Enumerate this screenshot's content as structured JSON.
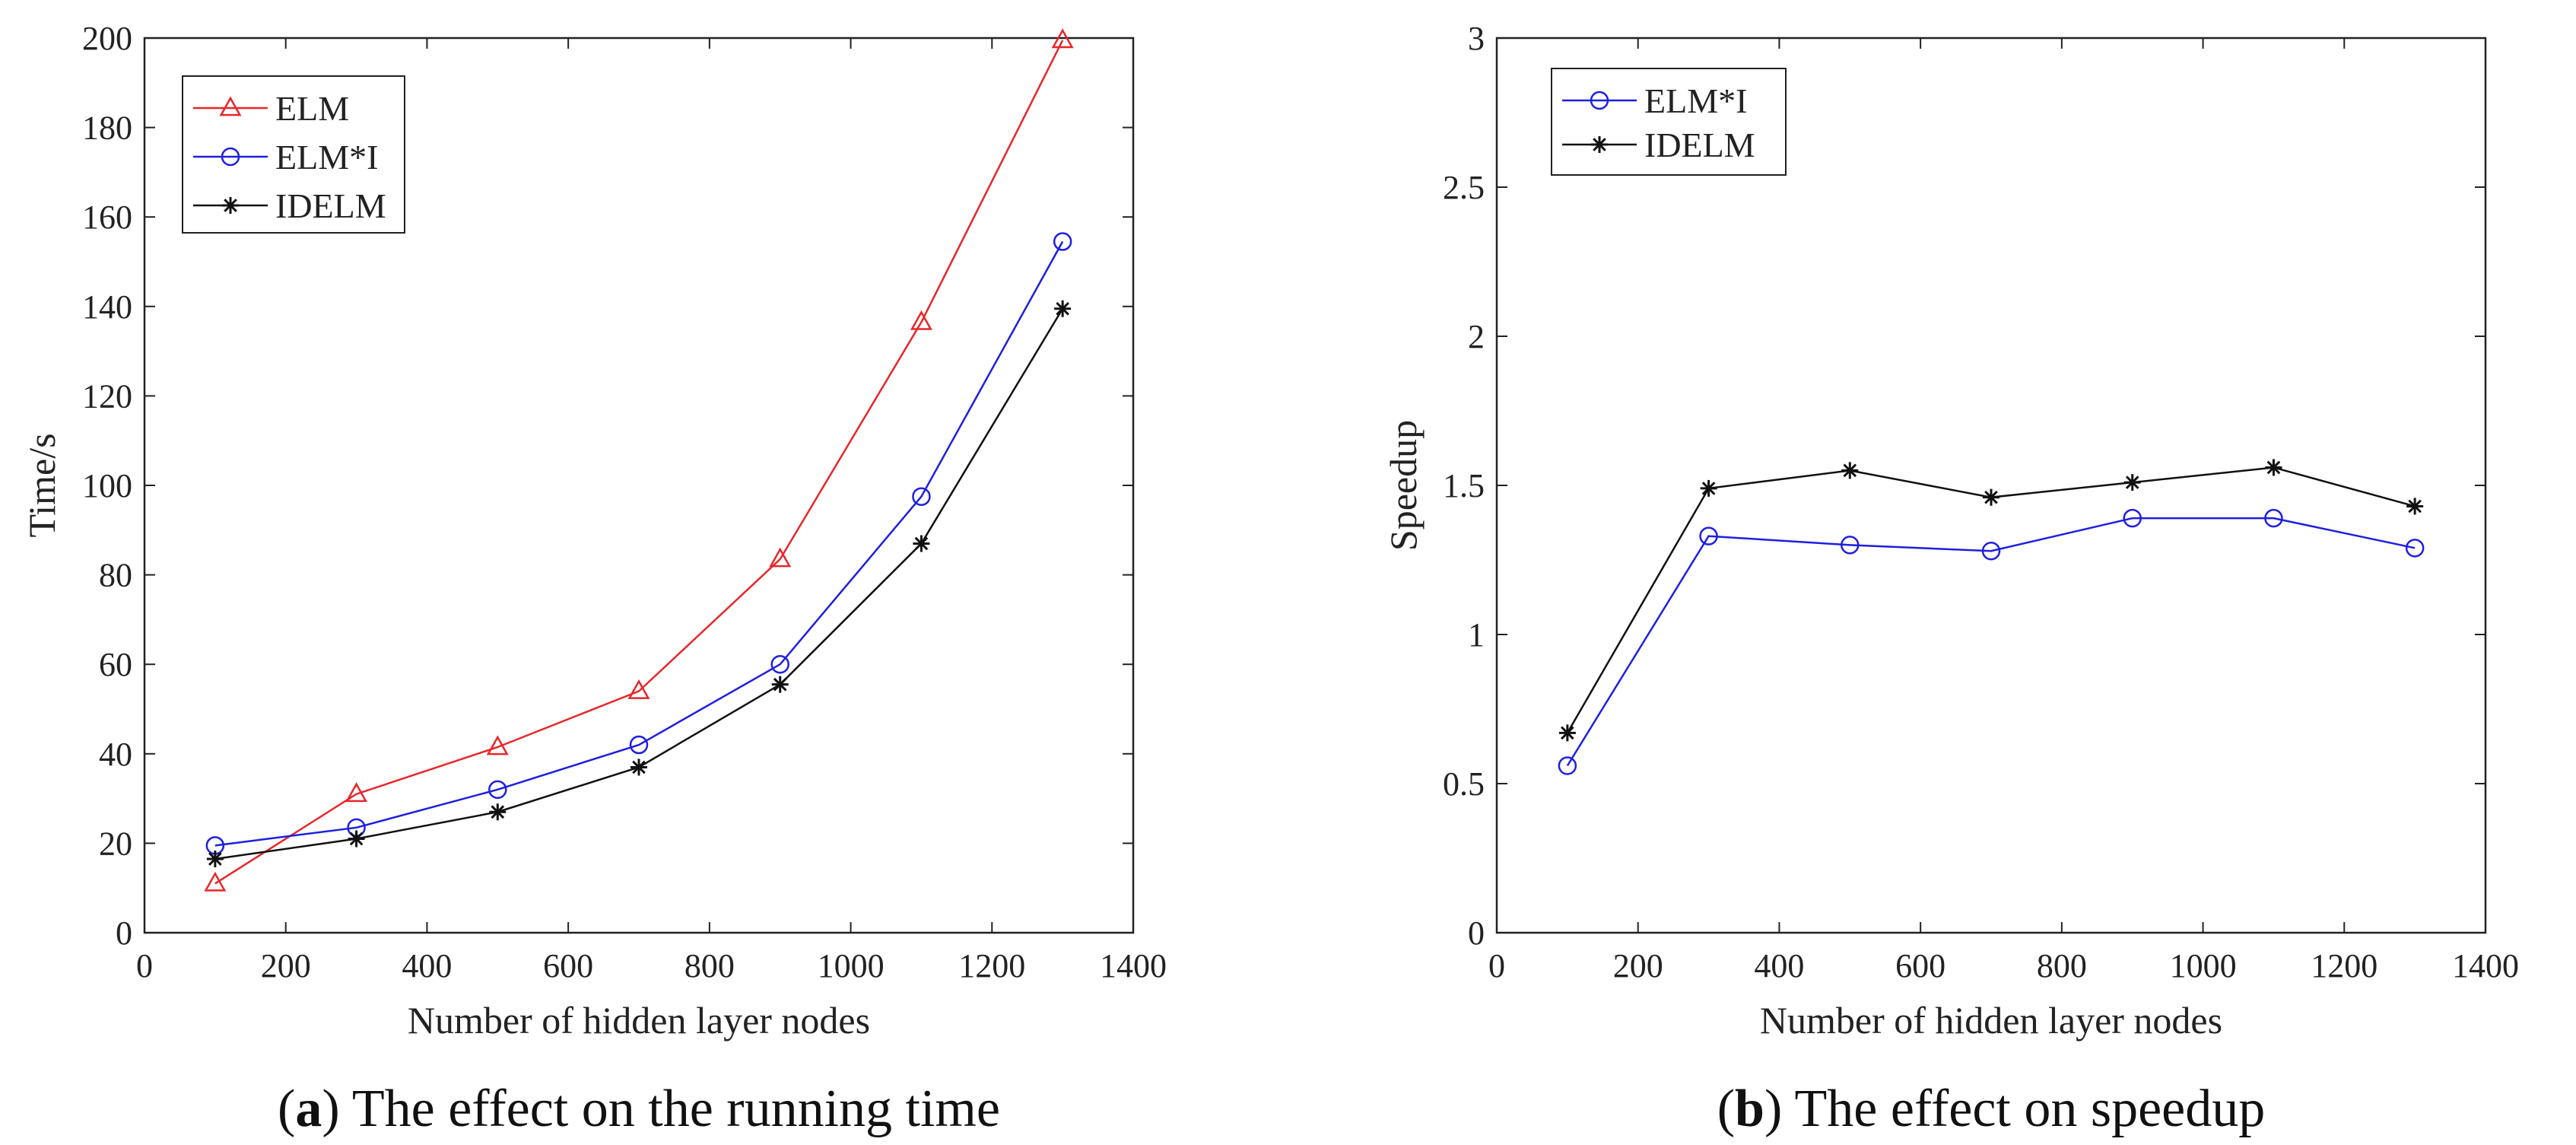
{
  "chart_data": [
    {
      "type": "line",
      "caption_letter": "a",
      "caption_text": " The effect on the running time",
      "title": "",
      "xlabel": "Number of hidden layer nodes",
      "ylabel": "Time/s",
      "xlim": [
        0,
        1400
      ],
      "ylim": [
        0,
        200
      ],
      "xticks": [
        0,
        200,
        400,
        600,
        800,
        1000,
        1200,
        1400
      ],
      "yticks": [
        0,
        20,
        40,
        60,
        80,
        100,
        120,
        140,
        160,
        180,
        200
      ],
      "x": [
        100,
        300,
        500,
        700,
        900,
        1100,
        1300
      ],
      "legend_position": "top-left",
      "series": [
        {
          "name": "ELM",
          "color": "#e8262a",
          "marker": "triangle",
          "values": [
            11,
            31,
            41.5,
            54,
            83.5,
            136.5,
            199.5
          ]
        },
        {
          "name": "ELM*I",
          "color": "#1f1fe0",
          "marker": "circle",
          "values": [
            19.5,
            23.5,
            32,
            42,
            60,
            97.5,
            154.5
          ]
        },
        {
          "name": "IDELM",
          "color": "#111111",
          "marker": "star",
          "values": [
            16.5,
            21,
            27,
            37,
            55.5,
            87,
            139.5
          ]
        }
      ]
    },
    {
      "type": "line",
      "caption_letter": "b",
      "caption_text": " The effect on speedup",
      "title": "",
      "xlabel": "Number of hidden layer nodes",
      "ylabel": "Speedup",
      "xlim": [
        0,
        1400
      ],
      "ylim": [
        0,
        3
      ],
      "xticks": [
        0,
        200,
        400,
        600,
        800,
        1000,
        1200,
        1400
      ],
      "yticks": [
        0,
        0.5,
        1,
        1.5,
        2,
        2.5,
        3
      ],
      "x": [
        100,
        300,
        500,
        700,
        900,
        1100,
        1300
      ],
      "legend_position": "top-left",
      "series": [
        {
          "name": "ELM*I",
          "color": "#1f1fe0",
          "marker": "circle",
          "values": [
            0.56,
            1.33,
            1.3,
            1.28,
            1.39,
            1.39,
            1.29
          ]
        },
        {
          "name": "IDELM",
          "color": "#111111",
          "marker": "star",
          "values": [
            0.67,
            1.49,
            1.55,
            1.46,
            1.51,
            1.56,
            1.43
          ]
        }
      ]
    }
  ]
}
